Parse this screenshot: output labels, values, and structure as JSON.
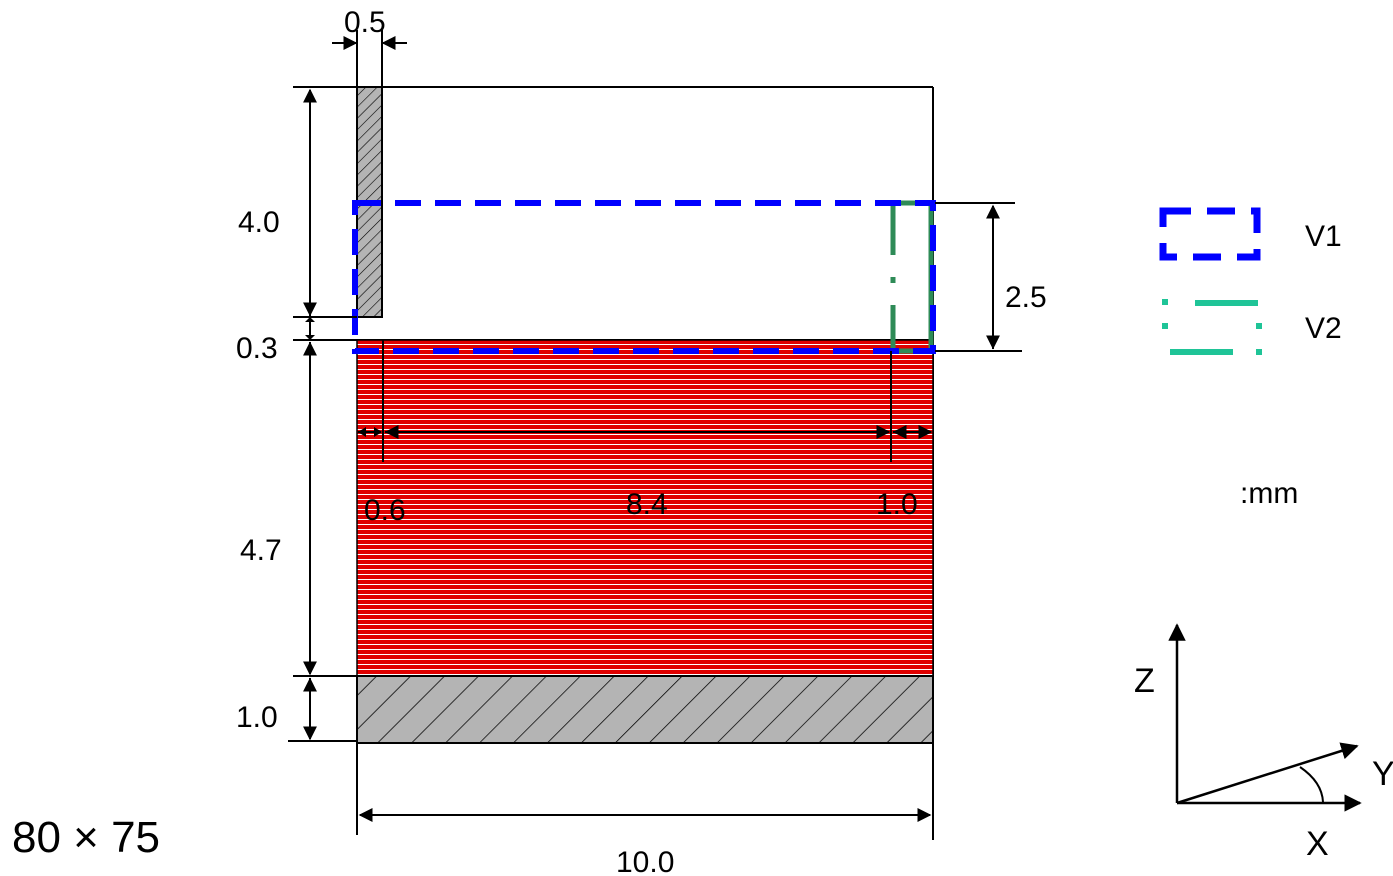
{
  "dimensions": {
    "top_width": "0.5",
    "height_upper": "4.0",
    "gap": "0.3",
    "height_mid": "4.7",
    "height_bottom": "1.0",
    "width_total": "10.0",
    "seg_left": "0.6",
    "seg_mid": "8.4",
    "seg_right": "1.0",
    "box_height": "2.5"
  },
  "legend": {
    "v1_label": "V1",
    "v2_label": "V2",
    "unit": ":mm"
  },
  "axes": {
    "z": "Z",
    "y": "Y",
    "x": "X"
  },
  "footer": {
    "size_text": "80 × 75"
  },
  "colors": {
    "red_region": "#e00000",
    "hatch_fill": "#b4b4b4",
    "v1_color": "#0000ff",
    "v2_color_diagram": "#2e8b57",
    "v2_color_legend": "#1fc497"
  }
}
